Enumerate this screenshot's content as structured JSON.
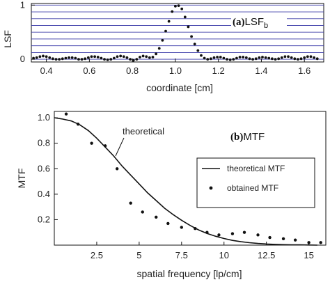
{
  "chart_data": [
    {
      "type": "scatter",
      "panel_label": "(a)",
      "panel_title": "LSF",
      "panel_title_sub": "b",
      "xlabel": "coordinate [cm]",
      "ylabel": "LSF",
      "xlim": [
        0.33,
        1.69
      ],
      "ylim": [
        -0.05,
        1.03
      ],
      "xticks": [
        "0.4",
        "0.6",
        "0.8",
        "1.0",
        "1.2",
        "1.4",
        "1.6"
      ],
      "yticks": [
        "0",
        "1"
      ],
      "grid": "horizontal",
      "series": [
        {
          "style": "dots",
          "x": [
            0.34,
            0.355,
            0.37,
            0.385,
            0.4,
            0.415,
            0.43,
            0.445,
            0.46,
            0.475,
            0.49,
            0.505,
            0.52,
            0.535,
            0.55,
            0.565,
            0.58,
            0.595,
            0.61,
            0.625,
            0.64,
            0.655,
            0.67,
            0.685,
            0.7,
            0.715,
            0.73,
            0.745,
            0.76,
            0.775,
            0.79,
            0.805,
            0.82,
            0.835,
            0.85,
            0.865,
            0.88,
            0.895,
            0.91,
            0.925,
            0.94,
            0.955,
            0.97,
            0.985,
            1.0,
            1.015,
            1.03,
            1.045,
            1.06,
            1.075,
            1.09,
            1.105,
            1.12,
            1.135,
            1.15,
            1.165,
            1.18,
            1.195,
            1.21,
            1.225,
            1.24,
            1.255,
            1.27,
            1.285,
            1.3,
            1.315,
            1.33,
            1.345,
            1.36,
            1.375,
            1.39,
            1.405,
            1.42,
            1.435,
            1.45,
            1.465,
            1.48,
            1.495,
            1.51,
            1.525,
            1.54,
            1.555,
            1.57,
            1.585,
            1.6,
            1.615,
            1.63,
            1.645,
            1.66
          ],
          "y": [
            0.02,
            0.03,
            0.05,
            0.06,
            0.05,
            0.03,
            0.01,
            0.0,
            0.0,
            0.01,
            0.02,
            0.03,
            0.03,
            0.02,
            0.0,
            0.0,
            0.01,
            0.03,
            0.05,
            0.05,
            0.04,
            0.02,
            0.0,
            -0.01,
            0.0,
            0.02,
            0.05,
            0.06,
            0.05,
            0.03,
            0.0,
            -0.02,
            0.0,
            0.04,
            0.06,
            0.05,
            0.03,
            0.04,
            0.1,
            0.2,
            0.35,
            0.52,
            0.7,
            0.88,
            0.98,
            0.99,
            0.93,
            0.78,
            0.6,
            0.42,
            0.28,
            0.16,
            0.07,
            0.02,
            0.0,
            0.01,
            0.03,
            0.04,
            0.04,
            0.02,
            0.0,
            -0.01,
            0.0,
            0.02,
            0.04,
            0.04,
            0.03,
            0.01,
            0.0,
            0.01,
            0.03,
            0.04,
            0.03,
            0.02,
            0.01,
            0.0,
            0.01,
            0.03,
            0.05,
            0.05,
            0.03,
            0.01,
            0.0,
            0.01,
            0.03,
            0.05,
            0.05,
            0.03,
            0.01
          ]
        }
      ]
    },
    {
      "type": "line",
      "panel_label": "(b)",
      "panel_title": "MTF",
      "xlabel": "spatial frequency [lp/cm]",
      "ylabel": "MTF",
      "xlim": [
        0,
        16
      ],
      "ylim": [
        0,
        1.05
      ],
      "xticks": [
        "2.5",
        "5",
        "7.5",
        "10",
        "12.5",
        "15"
      ],
      "xtick_values": [
        2.5,
        5,
        7.5,
        10,
        12.5,
        15
      ],
      "yticks": [
        "0.2",
        "0.4",
        "0.6",
        "0.8",
        "1.0"
      ],
      "ytick_values": [
        0.2,
        0.4,
        0.6,
        0.8,
        1.0
      ],
      "grid": "none",
      "annotation": "theoretical",
      "legend": "right",
      "series": [
        {
          "name": "theoretical MTF",
          "style": "line",
          "x": [
            0,
            0.5,
            1,
            1.5,
            2,
            2.5,
            3,
            3.5,
            4,
            4.5,
            5,
            5.5,
            6,
            6.5,
            7,
            7.5,
            8,
            8.5,
            9,
            9.5,
            10,
            10.5,
            11,
            11.5,
            12,
            12.5,
            13,
            13.5,
            14,
            14.5,
            15,
            15.5
          ],
          "y": [
            1.0,
            0.99,
            0.975,
            0.945,
            0.9,
            0.84,
            0.77,
            0.7,
            0.62,
            0.55,
            0.48,
            0.41,
            0.35,
            0.29,
            0.24,
            0.195,
            0.155,
            0.12,
            0.092,
            0.07,
            0.052,
            0.037,
            0.027,
            0.019,
            0.013,
            0.009,
            0.006,
            0.004,
            0.003,
            0.002,
            0.001,
            0.0
          ]
        },
        {
          "name": "obtained MTF",
          "style": "dots",
          "x": [
            0.7,
            1.4,
            2.2,
            3.0,
            3.7,
            4.5,
            5.2,
            6.0,
            6.7,
            7.5,
            8.3,
            9.0,
            9.7,
            10.5,
            11.2,
            12.0,
            12.7,
            13.5,
            14.2,
            15.0,
            15.7
          ],
          "y": [
            1.03,
            0.95,
            0.8,
            0.78,
            0.6,
            0.33,
            0.26,
            0.22,
            0.17,
            0.14,
            0.13,
            0.1,
            0.08,
            0.09,
            0.1,
            0.08,
            0.06,
            0.05,
            0.04,
            0.02,
            0.02
          ]
        }
      ]
    }
  ]
}
